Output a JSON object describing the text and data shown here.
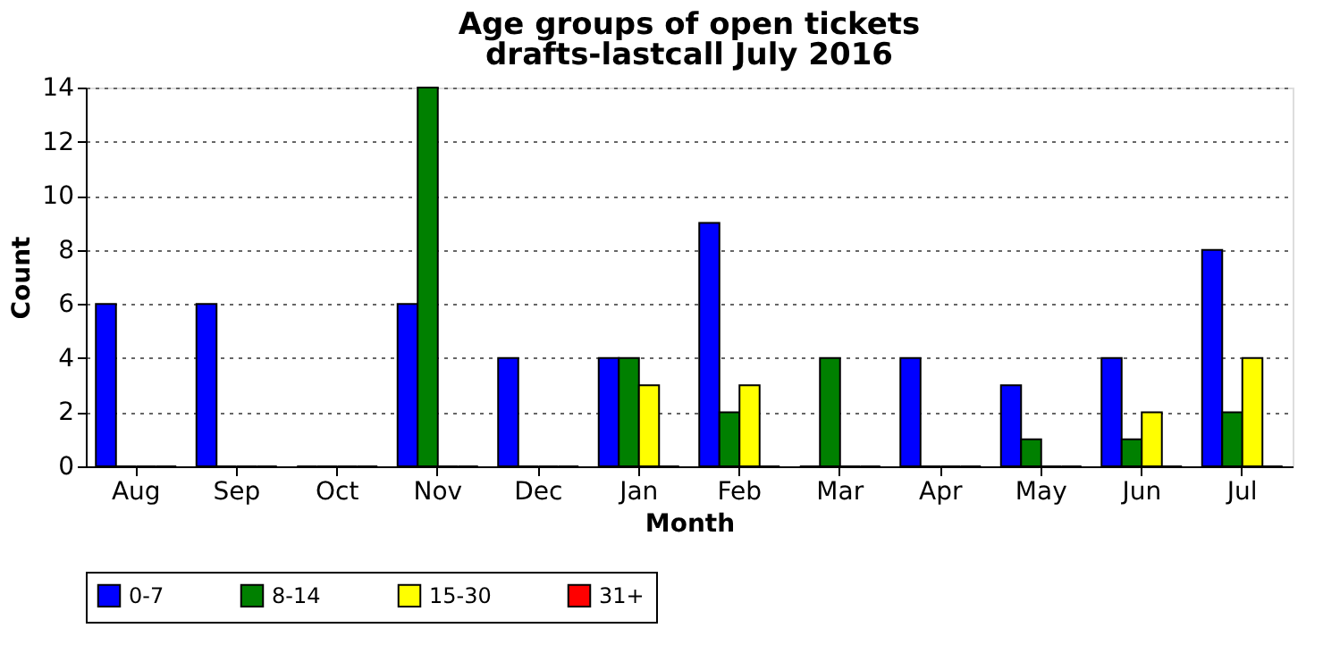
{
  "chart_data": {
    "type": "bar",
    "title": "Age groups of open tickets",
    "subtitle": "drafts-lastcall July 2016",
    "xlabel": "Month",
    "ylabel": "Count",
    "categories": [
      "Aug",
      "Sep",
      "Oct",
      "Nov",
      "Dec",
      "Jan",
      "Feb",
      "Mar",
      "Apr",
      "May",
      "Jun",
      "Jul"
    ],
    "series": [
      {
        "name": "0-7",
        "color": "#0000ff",
        "values": [
          6,
          6,
          0,
          6,
          4,
          4,
          9,
          0,
          4,
          3,
          4,
          8
        ]
      },
      {
        "name": "8-14",
        "color": "#008000",
        "values": [
          0,
          0,
          0,
          14,
          0,
          4,
          2,
          4,
          0,
          1,
          1,
          2
        ]
      },
      {
        "name": "15-30",
        "color": "#ffff00",
        "values": [
          0,
          0,
          0,
          0,
          0,
          3,
          3,
          0,
          0,
          0,
          2,
          4
        ]
      },
      {
        "name": "31+",
        "color": "#ff0000",
        "values": [
          0,
          0,
          0,
          0,
          0,
          0,
          0,
          0,
          0,
          0,
          0,
          0
        ]
      }
    ],
    "ylim": [
      0,
      14
    ],
    "yticks": [
      0,
      2,
      4,
      6,
      8,
      10,
      12,
      14
    ],
    "grid": "y",
    "legend": "bottom"
  }
}
